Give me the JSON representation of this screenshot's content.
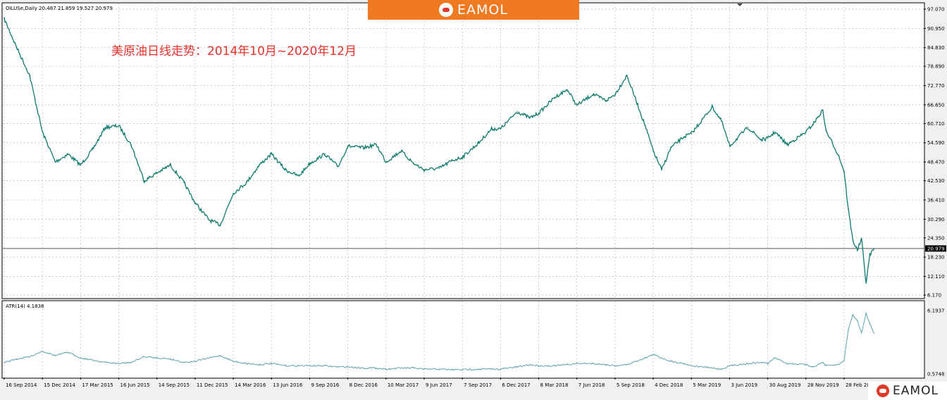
{
  "header": {
    "symbol_info": "OILUSe,Daily  20.487 21.859 19.527 20.979",
    "logo_text": "EAMOL",
    "watermark_text": "EAMOL"
  },
  "colors": {
    "price_line": "#0f7a6e",
    "atr_line": "#6aa8b8",
    "title": "#e8322a",
    "grid": "#b8b8b8",
    "frame": "#000000",
    "banner": "#f07a22",
    "price_tag_bg": "#000000",
    "price_tag_text": "#ffffff"
  },
  "chart_data": [
    {
      "type": "line",
      "panel": "main",
      "title": "美原油日线走势：2014年10月~2020年12月",
      "current_price": "20.979",
      "current_value": 20.979,
      "ylim": [
        6.17,
        97.07
      ],
      "y_ticks": [
        "97.070",
        "90.950",
        "84.830",
        "78.890",
        "72.770",
        "66.650",
        "60.710",
        "54.590",
        "48.470",
        "42.530",
        "36.410",
        "30.290",
        "24.350",
        "18.230",
        "12.110",
        "6.170"
      ],
      "x_ticks": [
        "16 Sep 2014",
        "15 Dec 2014",
        "17 Mar 2015",
        "16 Jun 2015",
        "14 Sep 2015",
        "11 Dec 2015",
        "14 Mar 2016",
        "13 Jun 2016",
        "9 Sep 2016",
        "8 Dec 2016",
        "10 Mar 2017",
        "9 Jun 2017",
        "7 Sep 2017",
        "6 Dec 2017",
        "8 Mar 2018",
        "7 Jun 2018",
        "5 Sep 2018",
        "4 Dec 2018",
        "5 Mar 2019",
        "3 Jun 2019",
        "30 Aug 2019",
        "28 Nov 2019",
        "28 Feb 2020"
      ],
      "series": [
        {
          "x": [
            "16 Sep 2014",
            "15 Oct 2014",
            "15 Nov 2014",
            "15 Dec 2014",
            "15 Jan 2015",
            "15 Feb 2015",
            "17 Mar 2015",
            "15 Apr 2015",
            "15 May 2015",
            "16 Jun 2015",
            "15 Jul 2015",
            "15 Aug 2015",
            "14 Sep 2015",
            "15 Oct 2015",
            "15 Nov 2015",
            "11 Dec 2015",
            "15 Jan 2016",
            "11 Feb 2016",
            "14 Mar 2016",
            "15 Apr 2016",
            "15 May 2016",
            "13 Jun 2016",
            "15 Jul 2016",
            "15 Aug 2016",
            "9 Sep 2016",
            "15 Oct 2016",
            "15 Nov 2016",
            "8 Dec 2016",
            "15 Jan 2017",
            "15 Feb 2017",
            "10 Mar 2017",
            "15 Apr 2017",
            "15 May 2017",
            "9 Jun 2017",
            "15 Jul 2017",
            "15 Aug 2017",
            "7 Sep 2017",
            "15 Oct 2017",
            "15 Nov 2017",
            "6 Dec 2017",
            "15 Jan 2018",
            "15 Feb 2018",
            "8 Mar 2018",
            "15 Apr 2018",
            "15 May 2018",
            "7 Jun 2018",
            "15 Jul 2018",
            "15 Aug 2018",
            "5 Sep 2018",
            "3 Oct 2018",
            "15 Nov 2018",
            "4 Dec 2018",
            "24 Dec 2018",
            "15 Jan 2019",
            "15 Feb 2019",
            "5 Mar 2019",
            "23 Apr 2019",
            "15 May 2019",
            "3 Jun 2019",
            "15 Jul 2019",
            "15 Aug 2019",
            "30 Aug 2019",
            "16 Sep 2019",
            "15 Oct 2019",
            "28 Nov 2019",
            "15 Dec 2019",
            "8 Jan 2020",
            "15 Jan 2020",
            "15 Feb 2020",
            "28 Feb 2020",
            "9 Mar 2020",
            "20 Mar 2020",
            "31 Mar 2020",
            "10 Apr 2020",
            "21 Apr 2020",
            "30 Apr 2020",
            "10 May 2020"
          ],
          "values": [
            94.0,
            85.0,
            76.0,
            58.0,
            48.5,
            51.0,
            47.5,
            52.5,
            59.5,
            60.0,
            54.0,
            42.5,
            45.0,
            47.5,
            42.0,
            35.5,
            30.0,
            28.5,
            38.5,
            42.0,
            47.5,
            51.0,
            46.0,
            44.0,
            48.0,
            51.0,
            47.0,
            53.5,
            53.0,
            54.0,
            48.5,
            52.0,
            48.0,
            46.0,
            46.5,
            49.0,
            50.0,
            54.5,
            59.0,
            59.0,
            64.5,
            62.5,
            64.0,
            69.0,
            71.5,
            66.5,
            70.0,
            68.0,
            70.0,
            76.0,
            60.0,
            52.0,
            46.0,
            53.0,
            56.5,
            57.5,
            66.0,
            61.5,
            53.5,
            59.5,
            55.5,
            56.0,
            58.0,
            54.0,
            58.0,
            60.5,
            65.0,
            58.5,
            50.5,
            45.5,
            33.5,
            23.5,
            20.5,
            24.0,
            10.0,
            19.0,
            20.979
          ]
        }
      ]
    },
    {
      "type": "line",
      "panel": "indicator",
      "title": "ATR(14) 4.1838",
      "ylim": [
        0.5748,
        6.1937
      ],
      "y_ticks": [
        "6.1937",
        "0.5748"
      ],
      "series": [
        {
          "name": "ATR(14)",
          "x": [
            "16 Sep 2014",
            "15 Oct 2014",
            "15 Nov 2014",
            "15 Dec 2014",
            "15 Jan 2015",
            "15 Feb 2015",
            "17 Mar 2015",
            "15 Apr 2015",
            "15 May 2015",
            "16 Jun 2015",
            "15 Jul 2015",
            "15 Aug 2015",
            "14 Sep 2015",
            "15 Oct 2015",
            "15 Nov 2015",
            "11 Dec 2015",
            "15 Jan 2016",
            "11 Feb 2016",
            "14 Mar 2016",
            "15 Apr 2016",
            "15 May 2016",
            "13 Jun 2016",
            "15 Jul 2016",
            "15 Aug 2016",
            "9 Sep 2016",
            "15 Oct 2016",
            "15 Nov 2016",
            "8 Dec 2016",
            "15 Jan 2017",
            "15 Feb 2017",
            "10 Mar 2017",
            "15 Apr 2017",
            "15 May 2017",
            "9 Jun 2017",
            "15 Jul 2017",
            "15 Aug 2017",
            "7 Sep 2017",
            "15 Oct 2017",
            "15 Nov 2017",
            "6 Dec 2017",
            "15 Jan 2018",
            "15 Feb 2018",
            "8 Mar 2018",
            "15 Apr 2018",
            "15 May 2018",
            "7 Jun 2018",
            "15 Jul 2018",
            "15 Aug 2018",
            "5 Sep 2018",
            "3 Oct 2018",
            "15 Nov 2018",
            "4 Dec 2018",
            "24 Dec 2018",
            "15 Jan 2019",
            "15 Feb 2019",
            "5 Mar 2019",
            "23 Apr 2019",
            "15 May 2019",
            "3 Jun 2019",
            "15 Jul 2019",
            "15 Aug 2019",
            "30 Aug 2019",
            "16 Sep 2019",
            "15 Oct 2019",
            "28 Nov 2019",
            "15 Dec 2019",
            "8 Jan 2020",
            "15 Jan 2020",
            "15 Feb 2020",
            "28 Feb 2020",
            "9 Mar 2020",
            "20 Mar 2020",
            "31 Mar 2020",
            "10 Apr 2020",
            "21 Apr 2020",
            "30 Apr 2020",
            "10 May 2020"
          ],
          "values": [
            1.6,
            1.9,
            2.1,
            2.6,
            2.2,
            2.5,
            2.0,
            1.8,
            1.6,
            1.5,
            1.6,
            2.1,
            2.0,
            1.9,
            1.6,
            1.7,
            2.0,
            2.2,
            1.7,
            1.5,
            1.4,
            1.5,
            1.3,
            1.3,
            1.3,
            1.3,
            1.2,
            1.2,
            1.1,
            1.1,
            1.0,
            1.1,
            1.1,
            1.0,
            1.0,
            0.95,
            0.95,
            1.0,
            1.0,
            1.0,
            1.2,
            1.4,
            1.3,
            1.3,
            1.4,
            1.5,
            1.5,
            1.4,
            1.3,
            1.4,
            2.0,
            2.3,
            2.0,
            1.7,
            1.5,
            1.3,
            1.1,
            1.0,
            1.3,
            1.5,
            1.6,
            1.5,
            2.0,
            1.5,
            1.4,
            1.2,
            1.6,
            1.3,
            1.4,
            1.8,
            4.5,
            5.8,
            5.3,
            4.2,
            6.0,
            5.0,
            4.1838
          ]
        }
      ]
    }
  ]
}
